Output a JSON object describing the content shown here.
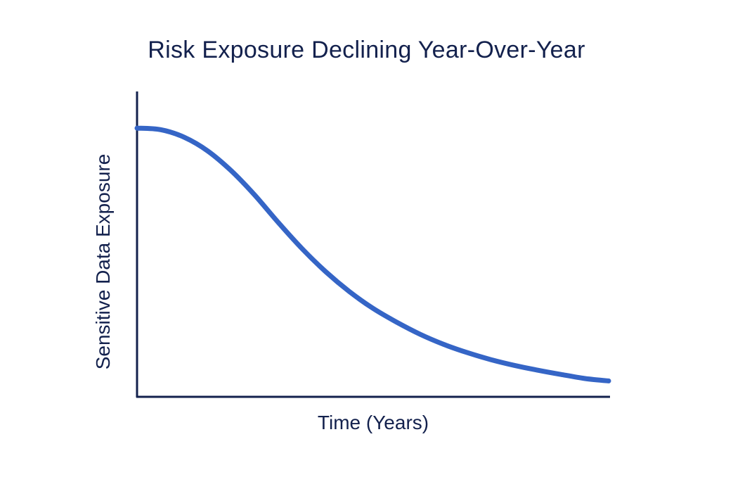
{
  "colors": {
    "axis": "#13214d",
    "text": "#13214d",
    "series": "#3565c6",
    "background": "#ffffff"
  },
  "chart_data": {
    "type": "line",
    "title": "Risk Exposure Declining Year-Over-Year",
    "xlabel": "Time (Years)",
    "ylabel": "Sensitive Data Exposure",
    "xlim": [
      0,
      10
    ],
    "ylim": [
      0,
      100
    ],
    "x_tick_labels": [],
    "y_tick_labels": [],
    "grid": false,
    "legend": "none",
    "series": [
      {
        "x": [
          0,
          0.5,
          1,
          1.5,
          2,
          2.5,
          3,
          3.5,
          4,
          4.5,
          5,
          5.5,
          6,
          6.5,
          7,
          7.5,
          8,
          8.5,
          9,
          9.5,
          10
        ],
        "values": [
          88,
          87.5,
          85,
          80.5,
          74,
          66,
          57,
          48.5,
          41,
          34.5,
          29,
          24.5,
          20.5,
          17.2,
          14.5,
          12.2,
          10.3,
          8.7,
          7.3,
          6,
          5.2
        ]
      }
    ]
  }
}
